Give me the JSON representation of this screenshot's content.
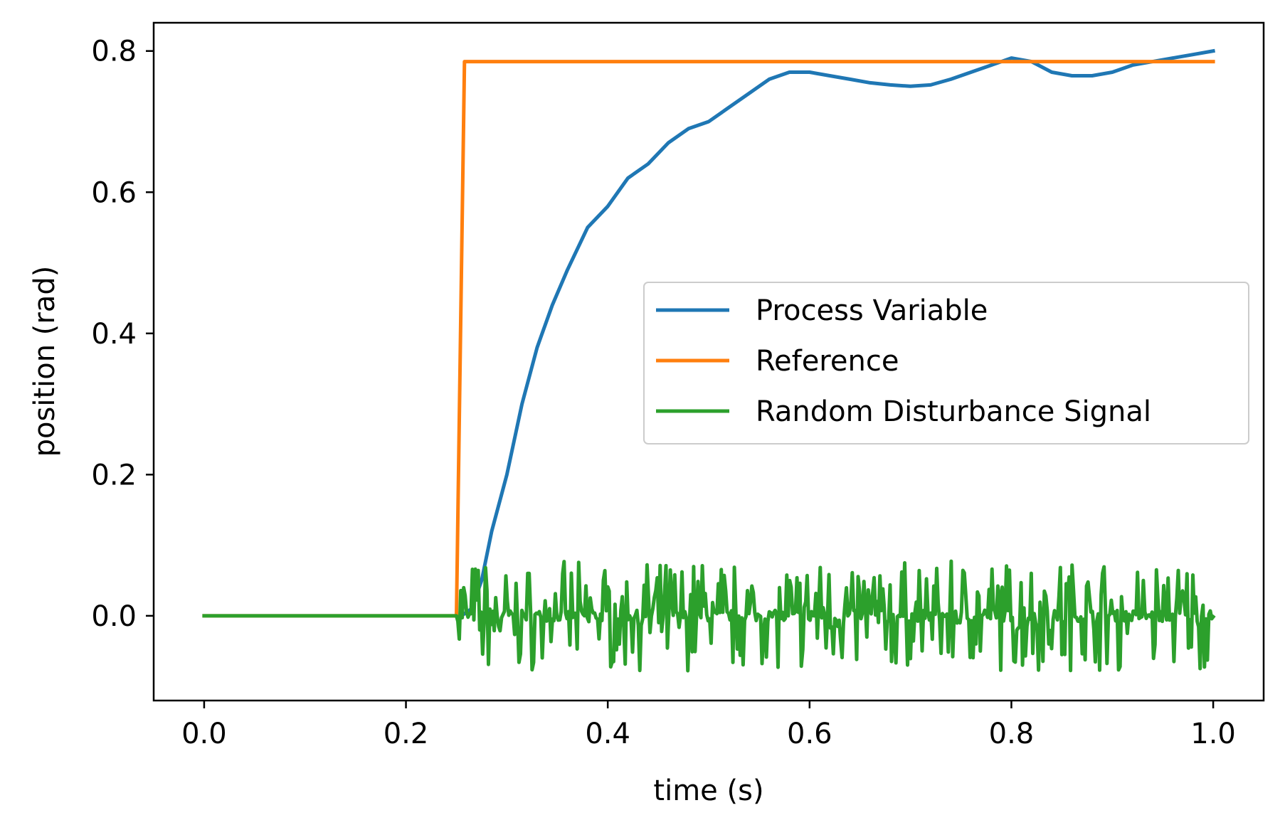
{
  "chart_data": {
    "type": "line",
    "title": "",
    "xlabel": "time (s)",
    "ylabel": "position (rad)",
    "xlim": [
      -0.05,
      1.05
    ],
    "ylim": [
      -0.12,
      0.84
    ],
    "xticks": [
      0.0,
      0.2,
      0.4,
      0.6,
      0.8,
      1.0
    ],
    "xtick_labels": [
      "0.0",
      "0.2",
      "0.4",
      "0.6",
      "0.8",
      "1.0"
    ],
    "yticks": [
      0.0,
      0.2,
      0.4,
      0.6,
      0.8
    ],
    "ytick_labels": [
      "0.0",
      "0.2",
      "0.4",
      "0.6",
      "0.8"
    ],
    "grid": false,
    "legend_position": "center-right",
    "series": [
      {
        "name": "Process Variable",
        "color": "#1f77b4",
        "x": [
          0.255,
          0.265,
          0.275,
          0.285,
          0.3,
          0.315,
          0.33,
          0.345,
          0.36,
          0.38,
          0.4,
          0.42,
          0.44,
          0.46,
          0.48,
          0.5,
          0.52,
          0.54,
          0.56,
          0.58,
          0.6,
          0.62,
          0.64,
          0.66,
          0.68,
          0.7,
          0.72,
          0.74,
          0.76,
          0.78,
          0.8,
          0.82,
          0.84,
          0.86,
          0.88,
          0.9,
          0.92,
          0.94,
          0.96,
          0.98,
          1.0
        ],
        "y": [
          0.0,
          0.01,
          0.05,
          0.12,
          0.2,
          0.3,
          0.38,
          0.44,
          0.49,
          0.55,
          0.58,
          0.62,
          0.64,
          0.67,
          0.69,
          0.7,
          0.72,
          0.74,
          0.76,
          0.77,
          0.77,
          0.765,
          0.76,
          0.755,
          0.752,
          0.75,
          0.752,
          0.76,
          0.77,
          0.78,
          0.79,
          0.785,
          0.77,
          0.765,
          0.765,
          0.77,
          0.78,
          0.785,
          0.79,
          0.795,
          0.8
        ]
      },
      {
        "name": "Reference",
        "color": "#ff7f0e",
        "x": [
          0.0,
          0.25,
          0.258,
          1.0
        ],
        "y": [
          0.0,
          0.0,
          0.785,
          0.785
        ]
      },
      {
        "name": "Random Disturbance Signal",
        "color": "#2ca02c",
        "x": [
          0.0,
          0.25,
          1.0
        ],
        "y": [
          0.0,
          0.0,
          0.0
        ],
        "noise_start": 0.25,
        "noise_end": 1.0,
        "noise_amplitude": 0.078
      }
    ]
  }
}
